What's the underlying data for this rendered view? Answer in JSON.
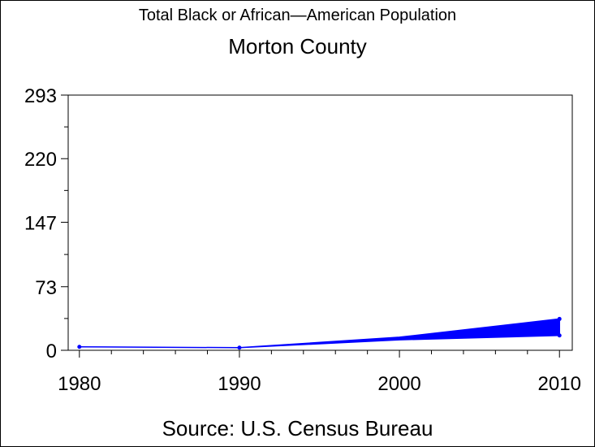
{
  "title": "Total Black or African—American Population",
  "subtitle": "Morton County",
  "footnote": "Source: U.S. Census Bureau",
  "chart_data": {
    "type": "area",
    "title": "Total Black or African—American Population",
    "subtitle": "Morton County",
    "xlabel": "",
    "ylabel": "",
    "x_ticks": [
      1980,
      1990,
      2000,
      2010
    ],
    "y_ticks": [
      0,
      73,
      147,
      220,
      293
    ],
    "xlim": [
      1979.3,
      2010.8
    ],
    "ylim": [
      0,
      293
    ],
    "grid": false,
    "legend": "none",
    "series": [
      {
        "x": [
          1980,
          1990,
          2000,
          2010
        ],
        "lower": [
          4,
          3,
          12,
          17
        ],
        "upper": [
          4,
          3,
          15,
          36
        ]
      }
    ],
    "points": [
      {
        "x": 1980,
        "y": 4
      },
      {
        "x": 1990,
        "y": 3
      },
      {
        "x": 2010,
        "y": 36
      },
      {
        "x": 2010,
        "y": 17
      }
    ],
    "color": "#0000ff"
  }
}
